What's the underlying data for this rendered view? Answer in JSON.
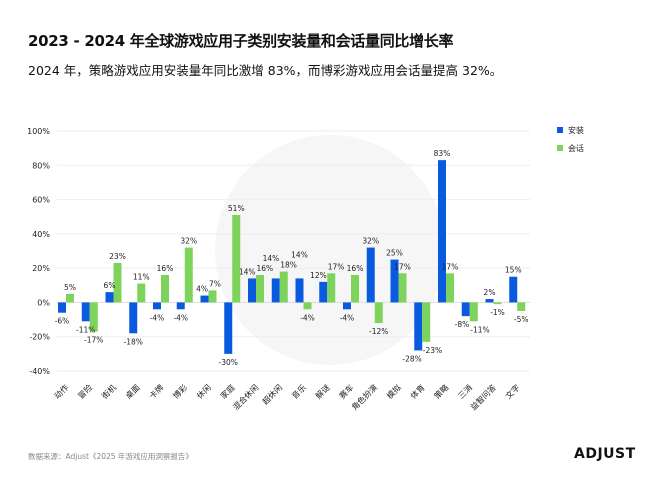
{
  "title": "2023 - 2024 年全球游戏应用子类别安装量和会话量同比增长率",
  "subtitle": "2024 年，策略游戏应用安装量年同比激增 83%，而博彩游戏应用会话量提高 32%。",
  "source": "数据来源：Adjust《2025 年游戏应用洞察报告》",
  "logo": "ADJUST",
  "chart_data": {
    "type": "bar",
    "categories": [
      "动作",
      "冒险",
      "街机",
      "桌面",
      "卡牌",
      "博彩",
      "休闲",
      "家庭",
      "混合休闲",
      "超休闲",
      "音乐",
      "解谜",
      "赛车",
      "角色扮演",
      "模拟",
      "体育",
      "策略",
      "三消",
      "益智问答",
      "文字"
    ],
    "series": [
      {
        "name": "安装",
        "color": "#0a5ae0",
        "values": [
          -6,
          -11,
          6,
          -18,
          -4,
          -4,
          4,
          -30,
          14,
          14,
          14,
          12,
          -4,
          32,
          25,
          -28,
          83,
          -8,
          2,
          15
        ]
      },
      {
        "name": "会话",
        "color": "#7dd35c",
        "values": [
          5,
          -17,
          23,
          11,
          16,
          32,
          7,
          51,
          16,
          18,
          -4,
          17,
          16,
          -12,
          17,
          -23,
          17,
          -11,
          -1,
          -5
        ]
      }
    ],
    "yticks": [
      "100%",
      "80%",
      "60%",
      "40%",
      "20%",
      "0%",
      "-20%",
      "-40%"
    ],
    "ylim": [
      -40,
      100
    ],
    "grid": true,
    "legend": "top-right",
    "unit": "%"
  }
}
